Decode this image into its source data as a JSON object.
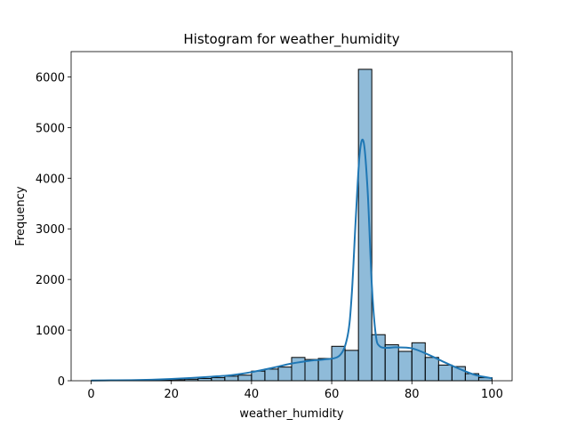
{
  "chart_data": {
    "type": "bar",
    "title": "Histogram for weather_humidity",
    "xlabel": "weather_humidity",
    "ylabel": "Frequency",
    "xlim": [
      -5,
      105
    ],
    "ylim": [
      0,
      6500
    ],
    "xticks": [
      0,
      20,
      40,
      60,
      80,
      100
    ],
    "yticks": [
      0,
      1000,
      2000,
      3000,
      4000,
      5000,
      6000
    ],
    "bar_color": "#1f77b4",
    "bar_alpha": 0.5,
    "edge_color": "#000000",
    "kde_color": "#1f77b4",
    "grid": false,
    "bin_edges": [
      0,
      3.33,
      6.67,
      10,
      13.33,
      16.67,
      20,
      23.33,
      26.67,
      30,
      33.33,
      36.67,
      40,
      43.33,
      46.67,
      50,
      53.33,
      56.67,
      60,
      63.33,
      66.67,
      70,
      73.33,
      76.67,
      80,
      83.33,
      86.67,
      90,
      93.33,
      96.67,
      100
    ],
    "values": [
      3,
      2,
      4,
      5,
      8,
      12,
      20,
      30,
      45,
      60,
      90,
      110,
      190,
      230,
      270,
      460,
      420,
      440,
      680,
      600,
      6150,
      910,
      710,
      580,
      750,
      460,
      310,
      280,
      140,
      60
    ],
    "kde": {
      "x": [
        0,
        5,
        10,
        15,
        20,
        25,
        30,
        35,
        40,
        45,
        50,
        55,
        58,
        62,
        64,
        65,
        66,
        67,
        68,
        69,
        70,
        71,
        72,
        74,
        76,
        80,
        84,
        88,
        92,
        96,
        100
      ],
      "y": [
        5,
        8,
        12,
        20,
        35,
        55,
        80,
        110,
        170,
        250,
        340,
        400,
        420,
        500,
        900,
        1700,
        3200,
        4500,
        4700,
        3700,
        1900,
        900,
        680,
        650,
        660,
        640,
        520,
        370,
        230,
        110,
        50
      ]
    }
  }
}
